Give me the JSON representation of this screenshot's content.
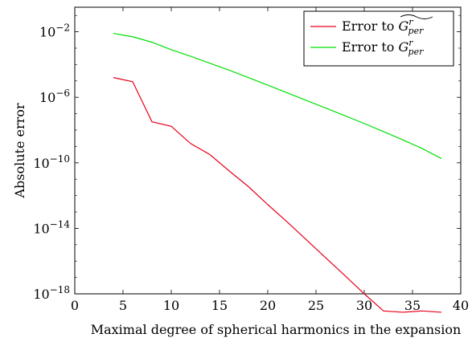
{
  "chart_data": {
    "type": "line",
    "xlabel": "Maximal degree of spherical harmonics in the expansion",
    "ylabel": "Absolute error",
    "xlim": [
      0,
      40
    ],
    "ylim_log10": [
      -18,
      -0.5
    ],
    "yscale": "log",
    "grid": false,
    "legend_position": "top-right",
    "x_ticks": [
      0,
      5,
      10,
      15,
      20,
      25,
      30,
      35,
      40
    ],
    "y_ticks": [
      {
        "exp": -2,
        "label_base": "10",
        "label_exp": "−2"
      },
      {
        "exp": -6,
        "label_base": "10",
        "label_exp": "−6"
      },
      {
        "exp": -10,
        "label_base": "10",
        "label_exp": "−10"
      },
      {
        "exp": -14,
        "label_base": "10",
        "label_exp": "−14"
      },
      {
        "exp": -18,
        "label_base": "10",
        "label_exp": "−18"
      }
    ],
    "series": [
      {
        "name": "Error to G̃^r_per",
        "legend_base": "Error to ",
        "legend_symbol": "G",
        "legend_sup": "r",
        "legend_sub": "per",
        "legend_tilde": true,
        "color": "#e8001c",
        "x": [
          4,
          6,
          8,
          10,
          12,
          14,
          16,
          18,
          20,
          22,
          24,
          26,
          28,
          30,
          32,
          34,
          36,
          38
        ],
        "y": [
          1.6e-05,
          9e-06,
          3.2e-08,
          1.7e-08,
          1.5e-09,
          3.2e-10,
          3.2e-11,
          3.5e-12,
          2.8e-13,
          2.5e-14,
          2e-15,
          1.6e-16,
          1.3e-17,
          1e-18,
          9e-20,
          7.5e-20,
          9e-20,
          7.5e-20
        ]
      },
      {
        "name": "Error to G^r_per",
        "legend_base": "Error to ",
        "legend_symbol": "G",
        "legend_sup": "r",
        "legend_sub": "per",
        "legend_tilde": false,
        "color": "#00e000",
        "x": [
          4,
          6,
          8,
          10,
          12,
          14,
          16,
          18,
          20,
          22,
          24,
          26,
          28,
          30,
          32,
          34,
          36,
          38
        ],
        "y": [
          0.008,
          0.005,
          0.0023,
          0.0008,
          0.00032,
          0.00012,
          4.5e-05,
          1.6e-05,
          5.5e-06,
          1.9e-06,
          6.5e-07,
          2.2e-07,
          7.5e-08,
          2.5e-08,
          8e-09,
          2.5e-09,
          7.5e-10,
          1.8e-10
        ]
      }
    ]
  }
}
